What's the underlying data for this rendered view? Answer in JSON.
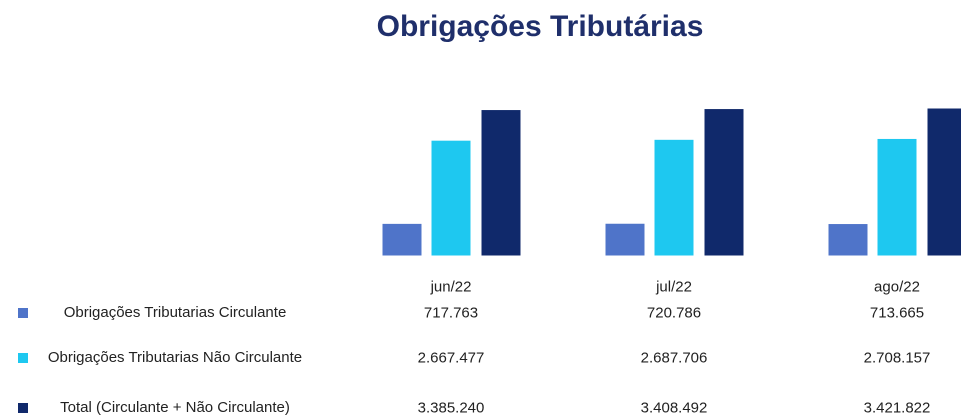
{
  "chart_data": {
    "type": "bar",
    "title": "Obrigações Tributárias",
    "categories": [
      "jun/22",
      "jul/22",
      "ago/22"
    ],
    "series": [
      {
        "name": "Obrigações Tributarias Circulante",
        "color": "#4f74c9",
        "values": [
          717763,
          720786,
          713665
        ],
        "value_labels": [
          "717.763",
          "720.786",
          "713.665"
        ]
      },
      {
        "name": "Obrigações Tributarias Não Circulante",
        "color": "#1ec8f0",
        "values": [
          2667477,
          2687706,
          2708157
        ],
        "value_labels": [
          "2.667.477",
          "2.687.706",
          "2.708.157"
        ]
      },
      {
        "name": "Total (Circulante + Não Circulante)",
        "color": "#10296b",
        "values": [
          3385240,
          3408492,
          3421822
        ],
        "value_labels": [
          "3.385.240",
          "3.408.492",
          "3.421.822"
        ]
      }
    ]
  }
}
